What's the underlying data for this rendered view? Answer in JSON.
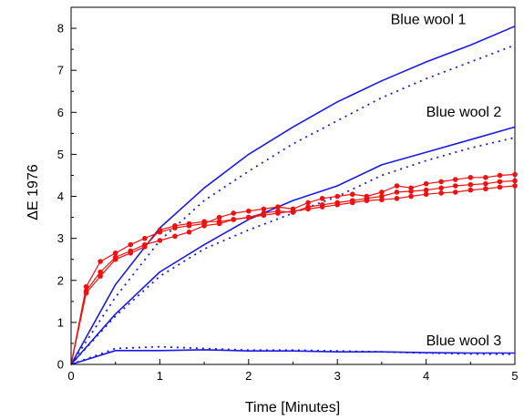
{
  "chart_data": {
    "type": "line",
    "xlabel": "Time [Minutes]",
    "ylabel": "ΔE 1976",
    "xlim": [
      0,
      5
    ],
    "ylim": [
      0,
      8.5
    ],
    "xticks": [
      0,
      1,
      2,
      3,
      4,
      5
    ],
    "yticks": [
      0,
      1,
      2,
      3,
      4,
      5,
      6,
      7,
      8
    ],
    "grid": false,
    "legend": "none",
    "colors": {
      "blue": "#1a1ae6",
      "red": "#ee1111"
    },
    "annotations": [
      {
        "text": "Blue wool 1",
        "x": 3.6,
        "y": 8.1
      },
      {
        "text": "Blue wool 2",
        "x": 4.0,
        "y": 5.9
      },
      {
        "text": "Blue wool 3",
        "x": 4.0,
        "y": 0.45
      }
    ],
    "series": [
      {
        "color": "#1a1ae6",
        "style": "solid",
        "x": [
          0,
          0.5,
          1,
          1.5,
          2,
          2.5,
          3,
          3.5,
          4,
          4.5,
          5
        ],
        "y": [
          0,
          1.9,
          3.25,
          4.2,
          5.0,
          5.65,
          6.25,
          6.75,
          7.2,
          7.6,
          8.05
        ]
      },
      {
        "color": "#1a1ae6",
        "style": "dotted",
        "x": [
          0,
          0.5,
          1,
          1.5,
          2,
          2.5,
          3,
          3.5,
          4,
          4.5,
          5
        ],
        "y": [
          0,
          1.6,
          2.95,
          3.9,
          4.6,
          5.25,
          5.8,
          6.35,
          6.8,
          7.2,
          7.6
        ]
      },
      {
        "color": "#1a1ae6",
        "style": "solid",
        "x": [
          0,
          0.5,
          1,
          1.5,
          2,
          2.5,
          3,
          3.5,
          4,
          4.5,
          5
        ],
        "y": [
          0,
          1.2,
          2.2,
          2.85,
          3.45,
          3.9,
          4.25,
          4.75,
          5.05,
          5.35,
          5.65
        ]
      },
      {
        "color": "#1a1ae6",
        "style": "dotted",
        "x": [
          0,
          0.5,
          1,
          1.5,
          2,
          2.5,
          3,
          3.5,
          4,
          4.5,
          5
        ],
        "y": [
          0,
          1.15,
          2.1,
          2.75,
          3.2,
          3.6,
          4.0,
          4.5,
          4.85,
          5.15,
          5.4
        ]
      },
      {
        "color": "#1a1ae6",
        "style": "solid",
        "x": [
          0,
          0.5,
          1,
          1.5,
          2,
          2.5,
          3,
          3.5,
          4,
          4.5,
          5
        ],
        "y": [
          0,
          0.33,
          0.33,
          0.35,
          0.32,
          0.32,
          0.3,
          0.3,
          0.28,
          0.27,
          0.27
        ]
      },
      {
        "color": "#1a1ae6",
        "style": "dotted",
        "x": [
          0,
          0.5,
          1,
          1.5,
          2,
          2.5,
          3,
          3.5,
          4,
          4.5,
          5
        ],
        "y": [
          0,
          0.38,
          0.42,
          0.38,
          0.34,
          0.34,
          0.32,
          0.3,
          0.27,
          0.25,
          0.24
        ]
      },
      {
        "color": "#ee1111",
        "style": "markers",
        "x": [
          0,
          0.17,
          0.33,
          0.5,
          0.67,
          0.83,
          1,
          1.17,
          1.33,
          1.5,
          1.67,
          1.83,
          2,
          2.17,
          2.33,
          2.5,
          2.67,
          2.83,
          3,
          3.17,
          3.33,
          3.5,
          3.67,
          3.83,
          4,
          4.17,
          4.33,
          4.5,
          4.67,
          4.83,
          5
        ],
        "y": [
          0,
          1.85,
          2.45,
          2.65,
          2.85,
          3.0,
          3.15,
          3.25,
          3.3,
          3.35,
          3.5,
          3.6,
          3.65,
          3.7,
          3.75,
          3.7,
          3.85,
          3.95,
          4.0,
          4.05,
          4.0,
          4.1,
          4.25,
          4.2,
          4.3,
          4.35,
          4.4,
          4.45,
          4.45,
          4.5,
          4.52
        ]
      },
      {
        "color": "#ee1111",
        "style": "markers",
        "x": [
          0,
          0.17,
          0.33,
          0.5,
          0.67,
          0.83,
          1,
          1.17,
          1.33,
          1.5,
          1.67,
          1.83,
          2,
          2.17,
          2.33,
          2.5,
          2.67,
          2.83,
          3,
          3.17,
          3.33,
          3.5,
          3.67,
          3.83,
          4,
          4.17,
          4.33,
          4.5,
          4.67,
          4.83,
          5
        ],
        "y": [
          0,
          1.75,
          2.2,
          2.55,
          2.7,
          2.85,
          2.95,
          3.05,
          3.15,
          3.3,
          3.35,
          3.45,
          3.5,
          3.6,
          3.65,
          3.62,
          3.75,
          3.8,
          3.85,
          3.9,
          3.95,
          4.0,
          4.1,
          4.12,
          4.15,
          4.2,
          4.25,
          4.28,
          4.3,
          4.35,
          4.37
        ]
      },
      {
        "color": "#ee1111",
        "style": "markers",
        "x": [
          0,
          0.17,
          0.33,
          0.5,
          0.67,
          0.83,
          1,
          1.17,
          1.33,
          1.5,
          1.67,
          1.83,
          2,
          2.17,
          2.33,
          2.5,
          2.67,
          2.83,
          3,
          3.17,
          3.33,
          3.5,
          3.67,
          3.83,
          4,
          4.17,
          4.33,
          4.5,
          4.67,
          4.83,
          5
        ],
        "y": [
          0,
          1.7,
          2.1,
          2.5,
          2.65,
          2.8,
          3.2,
          3.3,
          3.35,
          3.4,
          3.4,
          3.45,
          3.5,
          3.55,
          3.6,
          3.65,
          3.7,
          3.75,
          3.8,
          3.85,
          3.9,
          3.92,
          3.95,
          4.0,
          4.05,
          4.08,
          4.1,
          4.15,
          4.18,
          4.22,
          4.25
        ]
      }
    ]
  }
}
